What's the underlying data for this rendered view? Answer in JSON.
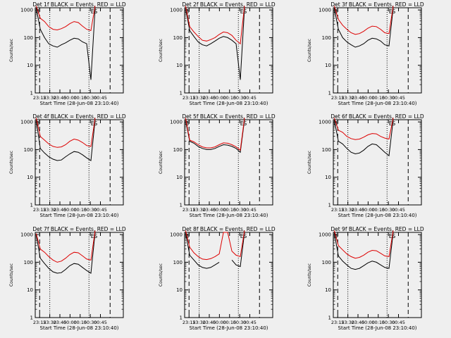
{
  "figure": {
    "background": "#efefef",
    "colors": {
      "events": "#000000",
      "lld": "#dd0000",
      "axes": "#000000"
    }
  },
  "chart_data": [
    {
      "type": "line",
      "scale_y": "log",
      "title": "Det 1f BLACK = Events, RED = LLD",
      "ylabel": "Counts/sec",
      "xlabel": "Start Time (28-Jun-08 23:10:40)",
      "xticks": [
        "23:15",
        "23:30",
        "23:45",
        "00:00",
        "00:15",
        "00:30",
        "00:45"
      ],
      "yticks": [
        "1",
        "10",
        "100",
        "1000"
      ],
      "ylim": [
        1,
        1000
      ],
      "markers": [
        "B",
        "E",
        "S"
      ],
      "series": [
        {
          "name": "Events",
          "values": [
            1200,
            200,
            100,
            60,
            50,
            45,
            55,
            65,
            80,
            95,
            90,
            70,
            60,
            3,
            1200
          ]
        },
        {
          "name": "LLD",
          "values": [
            1400,
            500,
            380,
            250,
            200,
            190,
            210,
            250,
            320,
            380,
            350,
            260,
            200,
            180,
            1400
          ]
        }
      ]
    },
    {
      "type": "line",
      "scale_y": "log",
      "title": "Det 2f BLACK = Events, RED = LLD",
      "ylabel": "Counts/sec",
      "xlabel": "Start Time (28-Jun-08 23:10:40)",
      "xticks": [
        "23:15",
        "23:30",
        "23:45",
        "00:00",
        "00:15",
        "00:30",
        "00:45"
      ],
      "yticks": [
        "1",
        "10",
        "100",
        "1000"
      ],
      "ylim": [
        1,
        1000
      ],
      "markers": [
        "B",
        "E",
        "S"
      ],
      "series": [
        {
          "name": "Events",
          "values": [
            1200,
            180,
            110,
            70,
            55,
            50,
            60,
            75,
            95,
            110,
            100,
            80,
            60,
            3,
            1200
          ]
        },
        {
          "name": "LLD",
          "values": [
            1400,
            250,
            160,
            110,
            80,
            75,
            85,
            100,
            130,
            160,
            150,
            120,
            80,
            60,
            1400
          ]
        }
      ]
    },
    {
      "type": "line",
      "scale_y": "log",
      "title": "Det 3f BLACK = Events, RED = LLD",
      "ylabel": "Counts/sec",
      "xlabel": "Start Time (28-Jun-08 23:10:40)",
      "xticks": [
        "23:15",
        "23:30",
        "23:45",
        "00:00",
        "00:15",
        "00:30",
        "00:45"
      ],
      "yticks": [
        "1",
        "10",
        "100",
        "1000"
      ],
      "ylim": [
        1,
        1000
      ],
      "markers": [
        "B",
        "E",
        "S"
      ],
      "series": [
        {
          "name": "Events",
          "values": [
            1200,
            200,
            100,
            70,
            55,
            45,
            50,
            60,
            80,
            95,
            90,
            75,
            55,
            50,
            1200
          ]
        },
        {
          "name": "LLD",
          "values": [
            1400,
            450,
            280,
            200,
            150,
            130,
            140,
            170,
            220,
            260,
            250,
            200,
            150,
            140,
            1400
          ]
        }
      ]
    },
    {
      "type": "line",
      "scale_y": "log",
      "title": "Det 4f BLACK = Events, RED = LLD",
      "ylabel": "Counts/sec",
      "xlabel": "Start Time (28-Jun-08 23:10:40)",
      "xticks": [
        "23:15",
        "23:30",
        "23:45",
        "00:00",
        "00:15",
        "00:30",
        "00:45"
      ],
      "yticks": [
        "1",
        "10",
        "100",
        "1000"
      ],
      "ylim": [
        1,
        1000
      ],
      "markers": [
        "B",
        "E",
        "S"
      ],
      "series": [
        {
          "name": "Events",
          "values": [
            1200,
            110,
            75,
            55,
            45,
            40,
            42,
            55,
            70,
            85,
            80,
            65,
            50,
            40,
            1200
          ]
        },
        {
          "name": "LLD",
          "values": [
            1400,
            300,
            220,
            160,
            130,
            120,
            125,
            150,
            200,
            240,
            220,
            180,
            140,
            130,
            1400
          ]
        }
      ]
    },
    {
      "type": "line",
      "scale_y": "log",
      "title": "Det 5f BLACK = Events, RED = LLD",
      "ylabel": "Counts/sec",
      "xlabel": "Start Time (28-Jun-08 23:10:40)",
      "xticks": [
        "23:15",
        "23:30",
        "23:45",
        "00:00",
        "00:15",
        "00:30",
        "00:45"
      ],
      "yticks": [
        "1",
        "10",
        "100",
        "1000"
      ],
      "ylim": [
        1,
        1000
      ],
      "markers": [
        "B",
        "E",
        "S"
      ],
      "series": [
        {
          "name": "Events",
          "values": [
            1200,
            200,
            170,
            130,
            110,
            100,
            100,
            110,
            130,
            150,
            145,
            130,
            110,
            80,
            1200
          ]
        },
        {
          "name": "LLD",
          "values": [
            1400,
            220,
            190,
            150,
            125,
            115,
            115,
            125,
            150,
            175,
            170,
            150,
            125,
            95,
            1400
          ]
        }
      ]
    },
    {
      "type": "line",
      "scale_y": "log",
      "title": "Det 6f BLACK = Events, RED = LLD",
      "ylabel": "Counts/sec",
      "xlabel": "Start Time (28-Jun-08 23:10:40)",
      "xticks": [
        "23:15",
        "23:30",
        "23:45",
        "00:00",
        "00:15",
        "00:30",
        "00:45"
      ],
      "yticks": [
        "1",
        "10",
        "100",
        "1000"
      ],
      "ylim": [
        1,
        1000
      ],
      "markers": [
        "B",
        "E",
        "S"
      ],
      "series": [
        {
          "name": "Events",
          "values": [
            1200,
            200,
            160,
            110,
            80,
            70,
            75,
            95,
            130,
            160,
            150,
            110,
            80,
            60,
            1200
          ]
        },
        {
          "name": "LLD",
          "values": [
            1400,
            500,
            420,
            300,
            250,
            230,
            240,
            280,
            340,
            380,
            370,
            300,
            260,
            240,
            1400
          ]
        }
      ]
    },
    {
      "type": "line",
      "scale_y": "log",
      "title": "Det 7f BLACK = Events, RED = LLD",
      "ylabel": "Counts/sec",
      "xlabel": "Start Time (28-Jun-08 23:10:40)",
      "xticks": [
        "23:15",
        "23:30",
        "23:45",
        "00:00",
        "00:15",
        "00:30",
        "00:45"
      ],
      "yticks": [
        "1",
        "10",
        "100",
        "1000"
      ],
      "ylim": [
        1,
        1000
      ],
      "markers": [
        "E",
        "S"
      ],
      "series": [
        {
          "name": "Events",
          "values": [
            1000,
            140,
            90,
            60,
            45,
            40,
            42,
            55,
            75,
            90,
            85,
            65,
            50,
            40,
            1200
          ]
        },
        {
          "name": "LLD",
          "values": [
            1100,
            300,
            230,
            160,
            120,
            100,
            110,
            140,
            190,
            230,
            220,
            170,
            130,
            120,
            1400
          ]
        }
      ]
    },
    {
      "type": "line",
      "scale_y": "log",
      "title": "Det 8f BLACK = Events, RED = LLD",
      "ylabel": "Counts/sec",
      "xlabel": "Start Time (28-Jun-08 23:10:40)",
      "xticks": [
        "23:15",
        "23:30",
        "23:45",
        "00:00",
        "00:15",
        "00:30",
        "00:45"
      ],
      "yticks": [
        "1",
        "10",
        "100",
        "1000"
      ],
      "ylim": [
        1,
        1000
      ],
      "markers": [
        "B",
        "E",
        "S"
      ],
      "series": [
        {
          "name": "Events",
          "values": [
            1200,
            180,
            120,
            80,
            65,
            60,
            65,
            80,
            100,
            0,
            0,
            120,
            80,
            70,
            1200
          ]
        },
        {
          "name": "LLD",
          "values": [
            1400,
            350,
            220,
            160,
            130,
            125,
            135,
            160,
            200,
            1200,
            1200,
            250,
            180,
            160,
            1400
          ]
        }
      ]
    },
    {
      "type": "line",
      "scale_y": "log",
      "title": "Det 9f BLACK = Events, RED = LLD",
      "ylabel": "Counts/sec",
      "xlabel": "Start Time (28-Jun-08 23:10:40)",
      "xticks": [
        "23:15",
        "23:30",
        "23:45",
        "00:00",
        "00:15",
        "00:30",
        "00:45"
      ],
      "yticks": [
        "1",
        "10",
        "100",
        "1000"
      ],
      "ylim": [
        1,
        1000
      ],
      "markers": [
        "B",
        "E",
        "S"
      ],
      "series": [
        {
          "name": "Events",
          "values": [
            1200,
            170,
            110,
            80,
            60,
            55,
            60,
            75,
            95,
            110,
            100,
            80,
            65,
            60,
            1200
          ]
        },
        {
          "name": "LLD",
          "values": [
            1400,
            400,
            280,
            200,
            160,
            140,
            150,
            180,
            230,
            270,
            260,
            210,
            170,
            160,
            1400
          ]
        }
      ]
    }
  ]
}
